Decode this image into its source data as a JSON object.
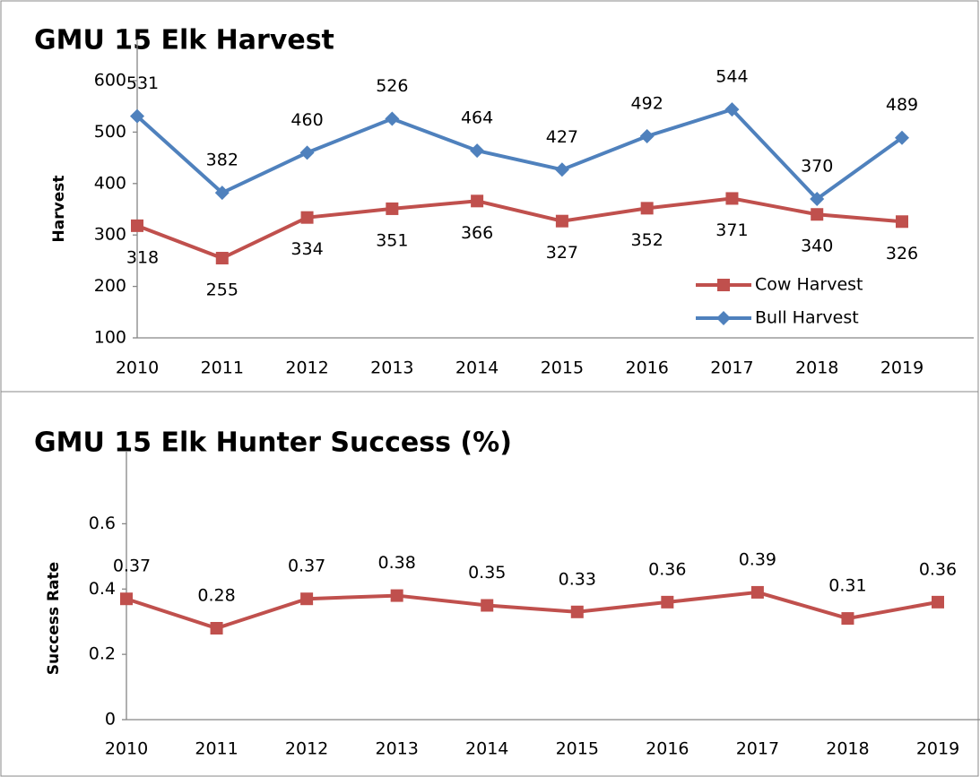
{
  "chart_data": [
    {
      "type": "line",
      "title": "GMU 15 Elk Harvest",
      "y_label": "Harvest",
      "categories": [
        "2010",
        "2011",
        "2012",
        "2013",
        "2014",
        "2015",
        "2016",
        "2017",
        "2018",
        "2019"
      ],
      "series": [
        {
          "name": "Cow Harvest",
          "color": "#c0504d",
          "marker": "square",
          "values": [
            318,
            255,
            334,
            351,
            366,
            327,
            352,
            371,
            340,
            326
          ]
        },
        {
          "name": "Bull Harvest",
          "color": "#4f81bd",
          "marker": "diamond",
          "values": [
            531,
            382,
            460,
            526,
            464,
            427,
            492,
            544,
            370,
            489
          ]
        }
      ],
      "ylim": [
        100,
        600
      ],
      "yticks": [
        100,
        200,
        300,
        400,
        500,
        600
      ],
      "grid": false,
      "legend": "lower right"
    },
    {
      "type": "line",
      "title": "GMU 15 Elk Hunter Success (%)",
      "y_label": "Success Rate",
      "categories": [
        "2010",
        "2011",
        "2012",
        "2013",
        "2014",
        "2015",
        "2016",
        "2017",
        "2018",
        "2019"
      ],
      "values": [
        0.37,
        0.28,
        0.37,
        0.38,
        0.35,
        0.33,
        0.36,
        0.39,
        0.31,
        0.36
      ],
      "color": "#c0504d",
      "marker": "square",
      "ylim": [
        0,
        0.7
      ],
      "yticks": [
        0,
        0.2,
        0.4,
        0.6
      ],
      "grid": false
    }
  ]
}
